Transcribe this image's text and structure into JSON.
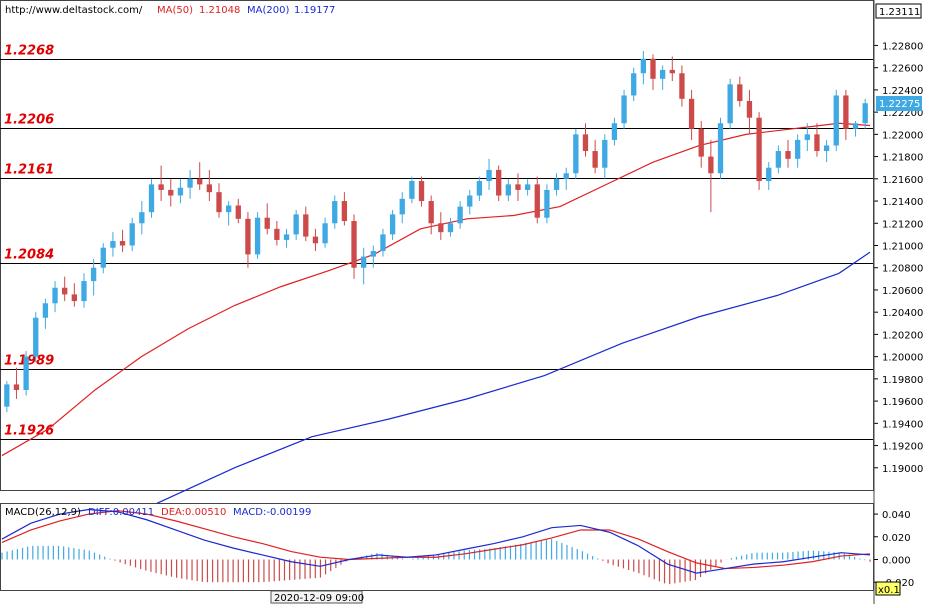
{
  "header": {
    "site": "http://www.deltastock.com/",
    "ma50_label": "MA(50)",
    "ma50_value": "1.21048",
    "ma200_label": "MA(200)",
    "ma200_value": "1.19177"
  },
  "macd_header": {
    "name": "MACD(26,12,9)",
    "diff": "DIFF:0.00411",
    "dea": "DEA:0.00510",
    "macd": "MACD:-0.00199"
  },
  "footer": {
    "time_label": "2020-12-09 09:00",
    "scale_label": "x0.1"
  },
  "colors": {
    "up": "#3ea9e3",
    "down": "#cc4a4a",
    "ma50": "#e02020",
    "ma200": "#1a2ad0",
    "level_text": "#e00000",
    "diff": "#1a2ad0",
    "dea": "#e02020"
  },
  "chart_data": [
    {
      "type": "candlestick",
      "instrument_hint": "deltastock",
      "ylim": [
        1.188,
        1.232
      ],
      "y_ticks": [
        "1.22800",
        "1.22600",
        "1.22400",
        "1.22200",
        "1.22000",
        "1.21800",
        "1.21600",
        "1.21400",
        "1.21200",
        "1.21000",
        "1.20800",
        "1.20600",
        "1.20400",
        "1.20200",
        "1.20000",
        "1.19800",
        "1.19600",
        "1.19400",
        "1.19200",
        "1.19000"
      ],
      "current_top_price": "1.23111",
      "last_price": "1.22275",
      "levels": [
        {
          "value": 1.2268,
          "label": "1.2268"
        },
        {
          "value": 1.2206,
          "label": "1.2206"
        },
        {
          "value": 1.2161,
          "label": "1.2161"
        },
        {
          "value": 1.2084,
          "label": "1.2084"
        },
        {
          "value": 1.1989,
          "label": "1.1989"
        },
        {
          "value": 1.1926,
          "label": "1.1926"
        }
      ],
      "series_ma50": [
        [
          0,
          1.1911
        ],
        [
          15,
          1.1935
        ],
        [
          30,
          1.197
        ],
        [
          45,
          1.2
        ],
        [
          60,
          1.2025
        ],
        [
          75,
          1.2046
        ],
        [
          90,
          1.2063
        ],
        [
          105,
          1.2077
        ],
        [
          120,
          1.2092
        ],
        [
          135,
          1.2115
        ],
        [
          150,
          1.2124
        ],
        [
          165,
          1.2127
        ],
        [
          180,
          1.2135
        ],
        [
          195,
          1.2155
        ],
        [
          210,
          1.2175
        ],
        [
          225,
          1.219
        ],
        [
          240,
          1.22
        ],
        [
          255,
          1.2205
        ],
        [
          270,
          1.221
        ],
        [
          280,
          1.2208
        ]
      ],
      "series_ma200": [
        [
          50,
          1.1868
        ],
        [
          75,
          1.19
        ],
        [
          100,
          1.1928
        ],
        [
          125,
          1.1944
        ],
        [
          150,
          1.1962
        ],
        [
          175,
          1.1983
        ],
        [
          200,
          1.2012
        ],
        [
          225,
          1.2036
        ],
        [
          250,
          1.2055
        ],
        [
          270,
          1.2075
        ],
        [
          280,
          1.2094
        ]
      ],
      "candles": [
        [
          1.1955,
          1.1978,
          1.195,
          1.1975
        ],
        [
          1.1975,
          1.199,
          1.1962,
          1.197
        ],
        [
          1.197,
          1.2005,
          1.1965,
          1.2
        ],
        [
          1.2,
          1.204,
          1.1995,
          1.2035
        ],
        [
          1.2035,
          1.2052,
          1.2025,
          1.2048
        ],
        [
          1.2048,
          1.2068,
          1.204,
          1.2062
        ],
        [
          1.2062,
          1.2072,
          1.205,
          1.2056
        ],
        [
          1.2056,
          1.2066,
          1.2045,
          1.205
        ],
        [
          1.205,
          1.2075,
          1.2044,
          1.2068
        ],
        [
          1.2068,
          1.2088,
          1.2055,
          1.208
        ],
        [
          1.208,
          1.2102,
          1.2075,
          1.2098
        ],
        [
          1.2098,
          1.2112,
          1.209,
          1.2104
        ],
        [
          1.2104,
          1.2114,
          1.2094,
          1.21
        ],
        [
          1.21,
          1.2125,
          1.2095,
          1.212
        ],
        [
          1.212,
          1.214,
          1.211,
          1.213
        ],
        [
          1.213,
          1.216,
          1.2125,
          1.2155
        ],
        [
          1.2155,
          1.2172,
          1.214,
          1.215
        ],
        [
          1.215,
          1.216,
          1.2135,
          1.2145
        ],
        [
          1.2145,
          1.216,
          1.2138,
          1.2152
        ],
        [
          1.2152,
          1.2168,
          1.2142,
          1.216
        ],
        [
          1.216,
          1.2175,
          1.215,
          1.2155
        ],
        [
          1.2155,
          1.2168,
          1.214,
          1.2148
        ],
        [
          1.2148,
          1.2156,
          1.2125,
          1.213
        ],
        [
          1.213,
          1.214,
          1.2118,
          1.2136
        ],
        [
          1.2136,
          1.2142,
          1.212,
          1.2124
        ],
        [
          1.2124,
          1.213,
          1.208,
          1.2092
        ],
        [
          1.2092,
          1.213,
          1.2088,
          1.2125
        ],
        [
          1.2125,
          1.2138,
          1.211,
          1.2115
        ],
        [
          1.2115,
          1.2122,
          1.21,
          1.2105
        ],
        [
          1.2105,
          1.2115,
          1.2098,
          1.211
        ],
        [
          1.211,
          1.2132,
          1.2105,
          1.2128
        ],
        [
          1.2128,
          1.2135,
          1.2104,
          1.2108
        ],
        [
          1.2108,
          1.2115,
          1.2095,
          1.2102
        ],
        [
          1.2102,
          1.2125,
          1.2098,
          1.212
        ],
        [
          1.212,
          1.2145,
          1.2115,
          1.214
        ],
        [
          1.214,
          1.2148,
          1.2118,
          1.2122
        ],
        [
          1.2122,
          1.2128,
          1.207,
          1.208
        ],
        [
          1.208,
          1.2098,
          1.2065,
          1.209
        ],
        [
          1.209,
          1.21,
          1.208,
          1.2095
        ],
        [
          1.2095,
          1.2115,
          1.209,
          1.211
        ],
        [
          1.211,
          1.2132,
          1.2105,
          1.2128
        ],
        [
          1.2128,
          1.2148,
          1.212,
          1.2142
        ],
        [
          1.2142,
          1.2162,
          1.2138,
          1.2158
        ],
        [
          1.2158,
          1.2162,
          1.2135,
          1.214
        ],
        [
          1.214,
          1.2145,
          1.211,
          1.212
        ],
        [
          1.212,
          1.213,
          1.2105,
          1.2112
        ],
        [
          1.2112,
          1.2125,
          1.2108,
          1.212
        ],
        [
          1.212,
          1.214,
          1.2115,
          1.2135
        ],
        [
          1.2135,
          1.215,
          1.2128,
          1.2145
        ],
        [
          1.2145,
          1.2162,
          1.214,
          1.2158
        ],
        [
          1.2158,
          1.2178,
          1.215,
          1.2168
        ],
        [
          1.2168,
          1.2172,
          1.214,
          1.2145
        ],
        [
          1.2145,
          1.216,
          1.214,
          1.2155
        ],
        [
          1.2155,
          1.2165,
          1.214,
          1.215
        ],
        [
          1.215,
          1.216,
          1.2145,
          1.2155
        ],
        [
          1.2155,
          1.2162,
          1.212,
          1.2125
        ],
        [
          1.2125,
          1.2155,
          1.212,
          1.215
        ],
        [
          1.215,
          1.2165,
          1.2145,
          1.216
        ],
        [
          1.216,
          1.217,
          1.215,
          1.2165
        ],
        [
          1.2165,
          1.2205,
          1.216,
          1.22
        ],
        [
          1.22,
          1.221,
          1.218,
          1.2185
        ],
        [
          1.2185,
          1.2195,
          1.2165,
          1.217
        ],
        [
          1.217,
          1.22,
          1.216,
          1.2195
        ],
        [
          1.2195,
          1.2215,
          1.219,
          1.221
        ],
        [
          1.221,
          1.224,
          1.2205,
          1.2235
        ],
        [
          1.2235,
          1.226,
          1.223,
          1.2255
        ],
        [
          1.2255,
          1.2275,
          1.2245,
          1.2268
        ],
        [
          1.2268,
          1.2272,
          1.224,
          1.225
        ],
        [
          1.225,
          1.2262,
          1.224,
          1.2258
        ],
        [
          1.2258,
          1.227,
          1.2248,
          1.2255
        ],
        [
          1.2255,
          1.2262,
          1.2225,
          1.2232
        ],
        [
          1.2232,
          1.224,
          1.2195,
          1.2205
        ],
        [
          1.2205,
          1.2212,
          1.217,
          1.218
        ],
        [
          1.218,
          1.2195,
          1.213,
          1.2165
        ],
        [
          1.2165,
          1.2215,
          1.216,
          1.221
        ],
        [
          1.221,
          1.225,
          1.2205,
          1.2245
        ],
        [
          1.2245,
          1.2252,
          1.2225,
          1.223
        ],
        [
          1.223,
          1.224,
          1.22,
          1.2215
        ],
        [
          1.2215,
          1.222,
          1.215,
          1.2158
        ],
        [
          1.2158,
          1.2175,
          1.215,
          1.217
        ],
        [
          1.217,
          1.219,
          1.2165,
          1.2185
        ],
        [
          1.2185,
          1.2195,
          1.217,
          1.2178
        ],
        [
          1.2178,
          1.22,
          1.217,
          1.2195
        ],
        [
          1.2195,
          1.221,
          1.2185,
          1.22
        ],
        [
          1.22,
          1.221,
          1.218,
          1.2185
        ],
        [
          1.2185,
          1.2195,
          1.2175,
          1.219
        ],
        [
          1.219,
          1.224,
          1.2185,
          1.2235
        ],
        [
          1.2235,
          1.224,
          1.2195,
          1.2205
        ],
        [
          1.2205,
          1.2212,
          1.2198,
          1.221
        ],
        [
          1.221,
          1.2232,
          1.2205,
          1.2228
        ]
      ]
    },
    {
      "type": "line",
      "title": "MACD(26,12,9)",
      "ylim": [
        -0.026,
        0.048
      ],
      "y_ticks": [
        "0.040",
        "0.020",
        "0.000",
        "-0.020"
      ],
      "series": [
        {
          "name": "DIFF",
          "values": [
            0.018,
            0.032,
            0.04,
            0.044,
            0.042,
            0.035,
            0.026,
            0.017,
            0.01,
            0.004,
            -0.002,
            -0.006,
            0.0,
            0.004,
            0.002,
            0.004,
            0.009,
            0.014,
            0.02,
            0.028,
            0.03,
            0.024,
            0.012,
            -0.004,
            -0.012,
            -0.008,
            -0.004,
            -0.002,
            0.002,
            0.006,
            0.004
          ]
        },
        {
          "name": "DEA",
          "values": [
            0.015,
            0.026,
            0.034,
            0.04,
            0.043,
            0.04,
            0.034,
            0.027,
            0.02,
            0.014,
            0.007,
            0.002,
            0.0,
            0.001,
            0.002,
            0.002,
            0.005,
            0.009,
            0.013,
            0.019,
            0.026,
            0.026,
            0.018,
            0.007,
            -0.003,
            -0.008,
            -0.007,
            -0.005,
            -0.002,
            0.003,
            0.005
          ]
        }
      ],
      "histogram": [
        0.006,
        0.012,
        0.012,
        0.008,
        -0.002,
        -0.01,
        -0.016,
        -0.02,
        -0.02,
        -0.02,
        -0.018,
        -0.016,
        0.0,
        0.006,
        0.0,
        0.004,
        0.008,
        0.01,
        0.014,
        0.018,
        0.008,
        -0.004,
        -0.012,
        -0.022,
        -0.018,
        0.0,
        0.006,
        0.006,
        0.008,
        0.006,
        -0.002
      ]
    }
  ]
}
